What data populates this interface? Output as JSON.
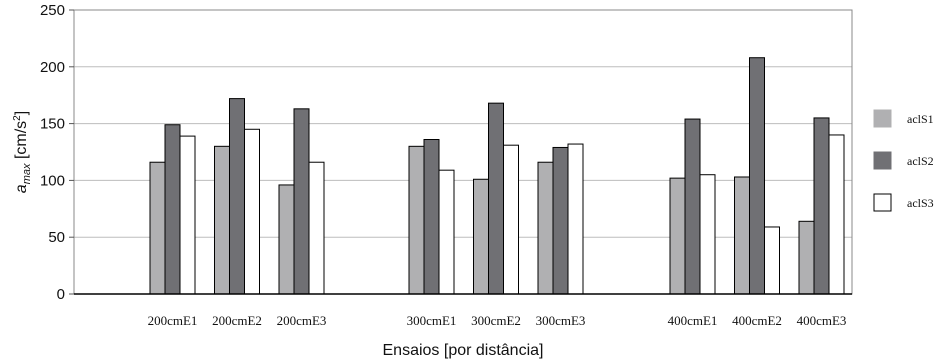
{
  "chart_data": {
    "type": "bar",
    "xlabel": "Ensaios [por distância]",
    "ylabel": {
      "a": "a",
      "sub": "max",
      "unit_open": " [cm/s",
      "sup": "2",
      "unit_close": "]"
    },
    "ylim": [
      0,
      250
    ],
    "yticks": [
      0,
      50,
      100,
      150,
      200,
      250
    ],
    "grid": true,
    "legend_position": "right",
    "group_blocks": [
      0,
      3,
      6
    ],
    "categories": [
      "200cmE1",
      "200cmE2",
      "200cmE3",
      "300cmE1",
      "300cmE2",
      "300cmE3",
      "400cmE1",
      "400cmE2",
      "400cmE3"
    ],
    "series": [
      {
        "name": "aclS1",
        "color": "#b0b0b2",
        "values": [
          116,
          130,
          96,
          130,
          101,
          116,
          102,
          103,
          64
        ]
      },
      {
        "name": "aclS2",
        "color": "#707074",
        "values": [
          149,
          172,
          163,
          136,
          168,
          129,
          154,
          208,
          155
        ]
      },
      {
        "name": "aclS3",
        "color": "#ffffff",
        "values": [
          139,
          145,
          116,
          109,
          131,
          132,
          105,
          59,
          140
        ]
      }
    ]
  }
}
